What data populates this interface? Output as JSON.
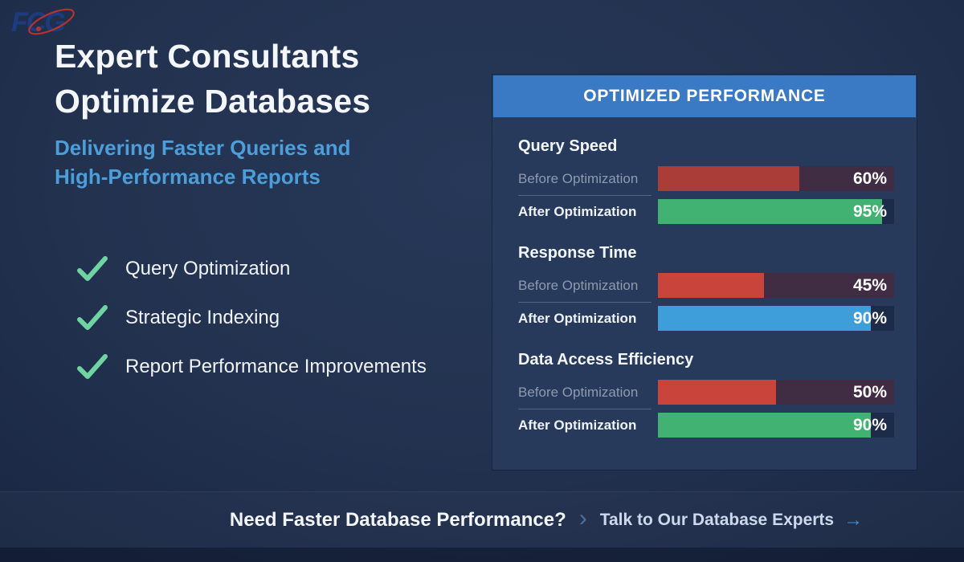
{
  "logo": {
    "text": "FCG"
  },
  "hero": {
    "title_line1": "Expert Consultants",
    "title_line2": "Optimize Databases",
    "subtitle_line1": "Delivering Faster Queries and",
    "subtitle_line2": "High-Performance Reports",
    "checklist": [
      {
        "label": "Query Optimization"
      },
      {
        "label": "Strategic Indexing"
      },
      {
        "label": "Report Performance Improvements"
      }
    ]
  },
  "panel": {
    "header": "OPTIMIZED PERFORMANCE",
    "before_label": "Before Optimization",
    "after_label": "After Optimization",
    "sections": [
      {
        "title": "Query Speed",
        "before": {
          "value": 60,
          "display": "60%",
          "color": "#aa3d38"
        },
        "after": {
          "value": 95,
          "display": "95%",
          "color": "#41b272"
        }
      },
      {
        "title": "Response Time",
        "before": {
          "value": 45,
          "display": "45%",
          "color": "#c9443a"
        },
        "after": {
          "value": 90,
          "display": "90%",
          "color": "#3e9ed9"
        }
      },
      {
        "title": "Data Access Efficiency",
        "before": {
          "value": 50,
          "display": "50%",
          "color": "#c9443a"
        },
        "after": {
          "value": 90,
          "display": "90%",
          "color": "#41b272"
        }
      }
    ]
  },
  "footer": {
    "question": "Need Faster Database Performance?",
    "chevron": "›",
    "cta": "Talk to Our Database Experts",
    "arrow": "→"
  },
  "colors": {
    "background": "#22324f",
    "panel_body": "#273a5b",
    "header_blue": "#3a79c3",
    "subtitle_blue": "#4d9ed8",
    "check_green": "#6fd3a2",
    "bar_green": "#41b272",
    "bar_blue": "#3e9ed9",
    "bar_red_muted": "#aa3d38",
    "bar_red_bright": "#c9443a",
    "before_track": "#412d43",
    "logo_blue": "#1d3c80",
    "logo_orbit_red": "#b5332c"
  },
  "chart_data": {
    "type": "bar",
    "orientation": "horizontal",
    "title": "OPTIMIZED PERFORMANCE",
    "categories": [
      "Query Speed",
      "Response Time",
      "Data Access Efficiency"
    ],
    "series": [
      {
        "name": "Before Optimization",
        "values": [
          60,
          45,
          50
        ]
      },
      {
        "name": "After Optimization",
        "values": [
          95,
          90,
          90
        ]
      }
    ],
    "unit": "%",
    "xlim": [
      0,
      100
    ],
    "grid": false,
    "legend_position": "row-labels",
    "value_labels": [
      "60%",
      "95%",
      "45%",
      "90%",
      "50%",
      "90%"
    ]
  }
}
